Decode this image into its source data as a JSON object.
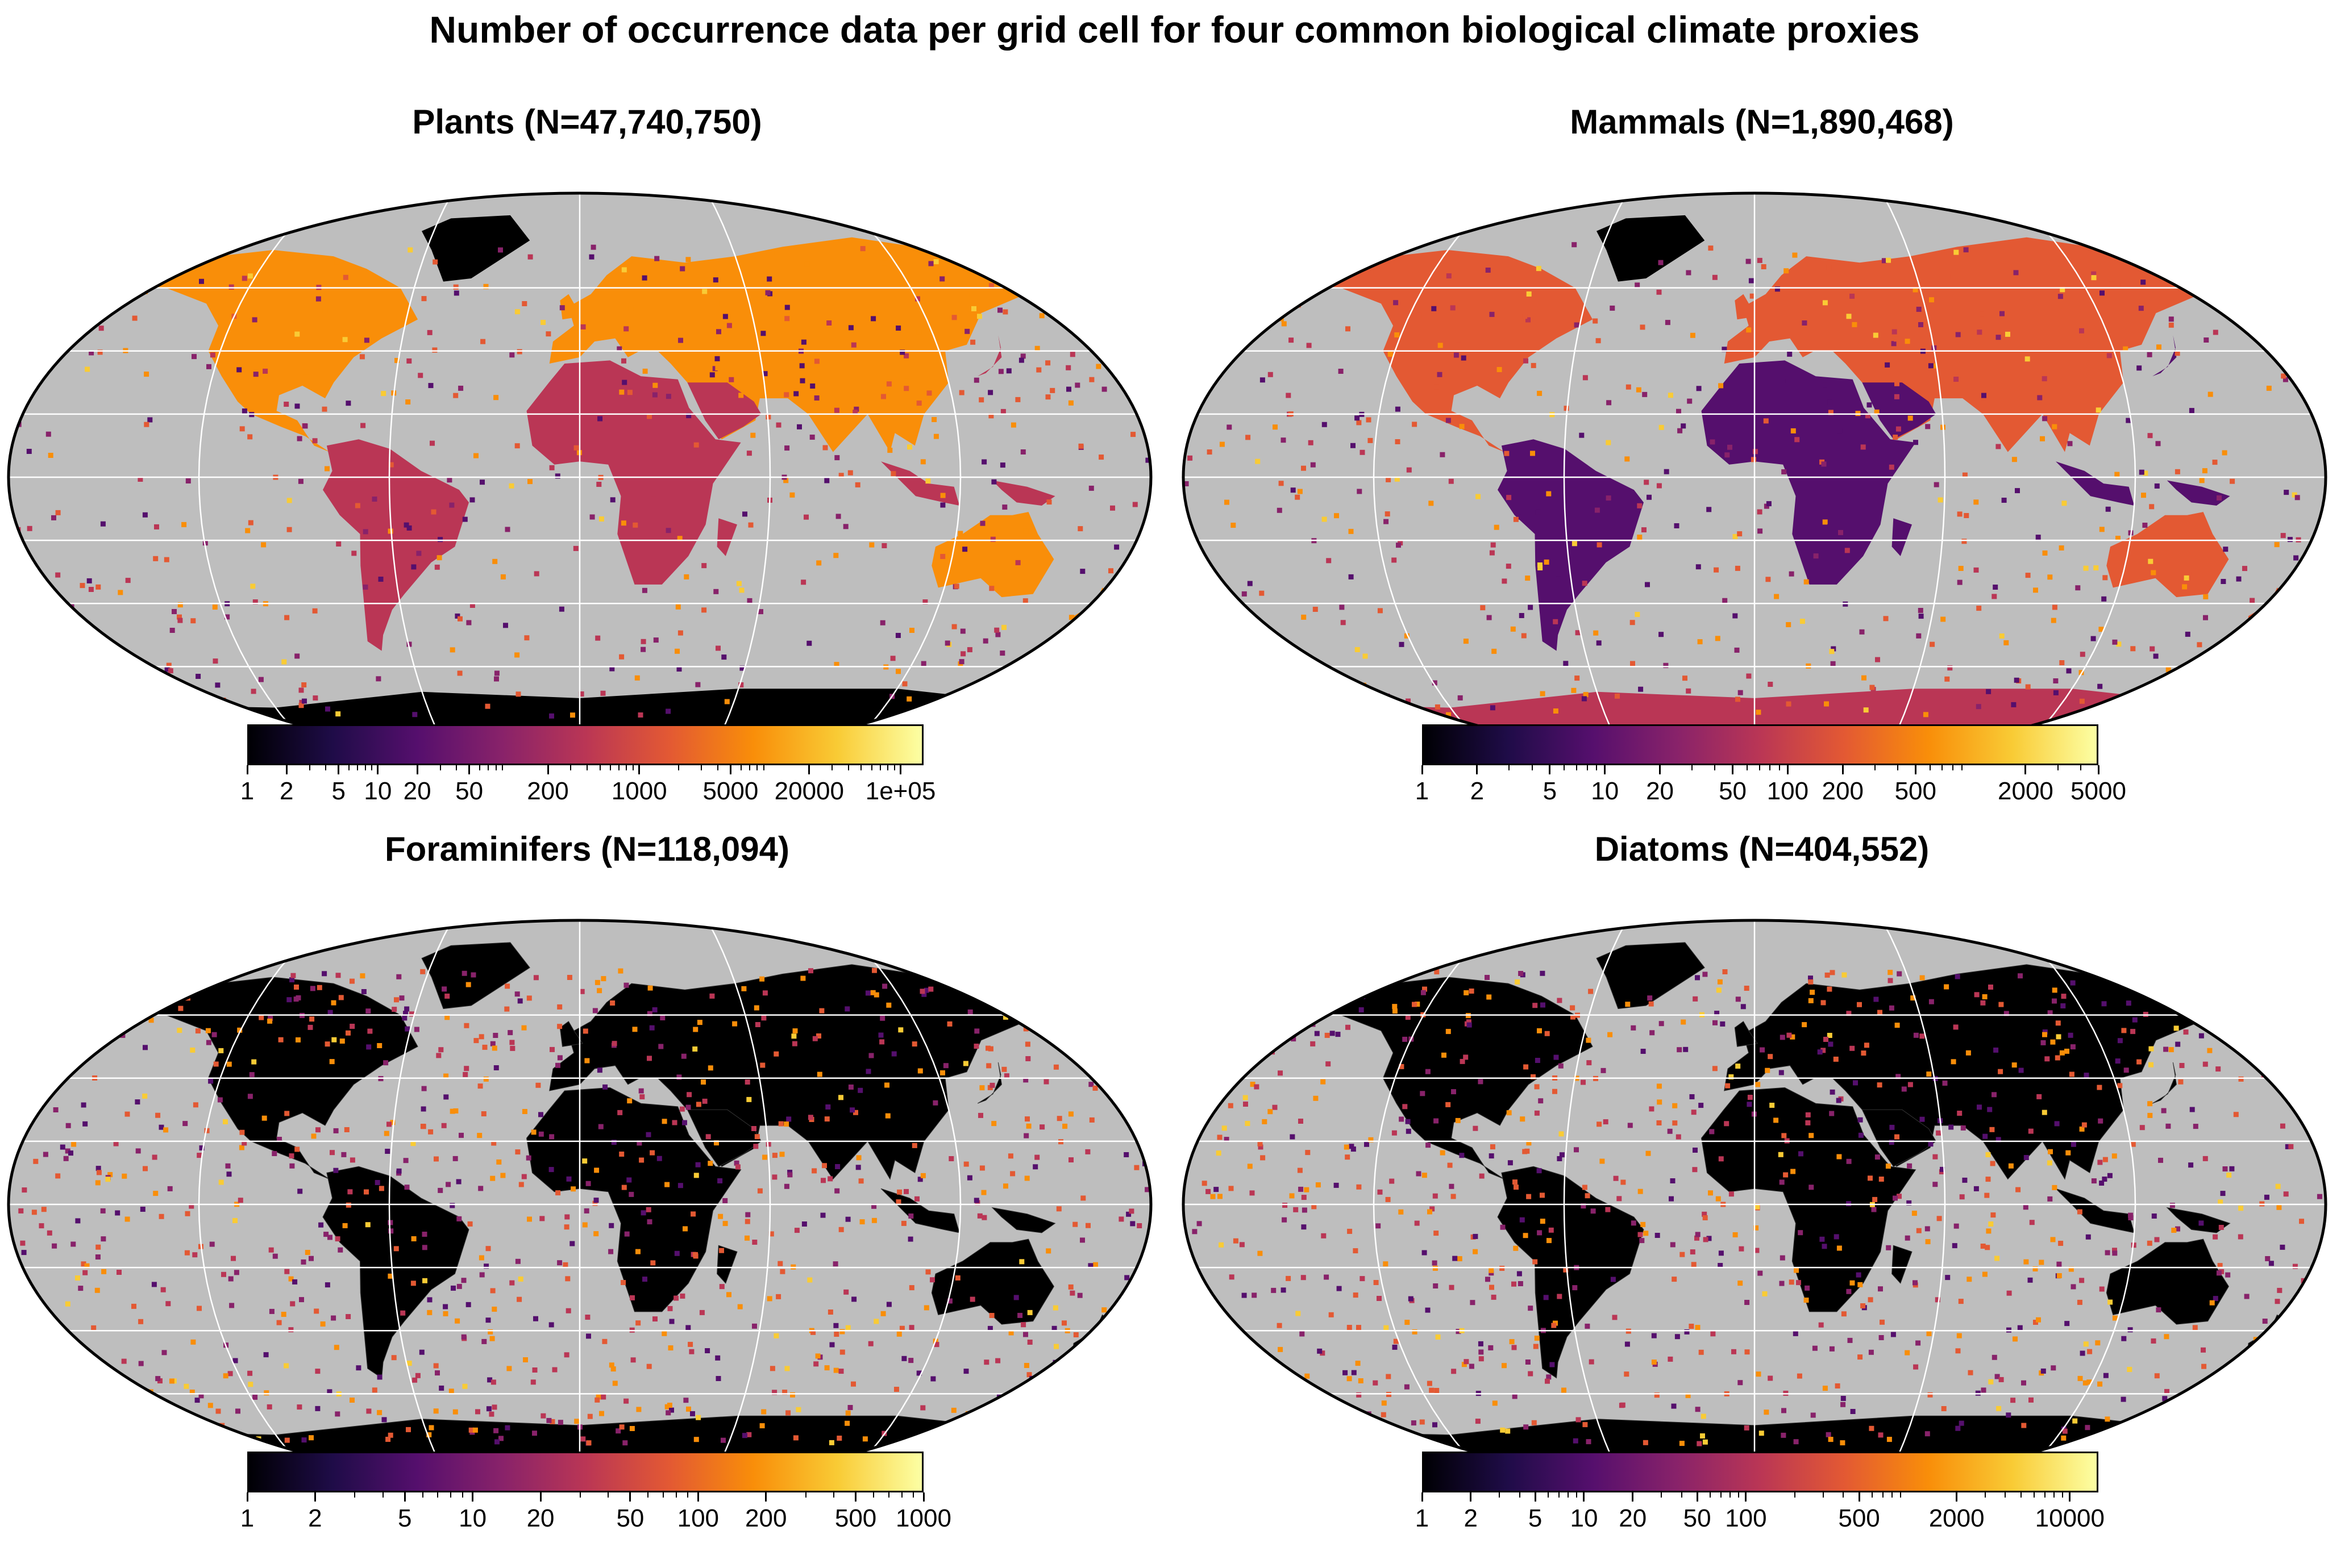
{
  "figure": {
    "title": "Number of occurrence data per grid cell for four common biological climate proxies"
  },
  "panels": [
    {
      "id": "plants",
      "title": "Plants (N=47,740,750)",
      "land_style": "heat",
      "colorbar": {
        "min": 1,
        "max": 150000,
        "scale": "log",
        "ticks": [
          1,
          2,
          5,
          10,
          20,
          50,
          200,
          1000,
          5000,
          20000,
          100000
        ],
        "tick_labels": [
          "1",
          "2",
          "5",
          "10",
          "20",
          "50",
          "200",
          "1000",
          "5000",
          "20000",
          "1e+05"
        ]
      }
    },
    {
      "id": "mammals",
      "title": "Mammals (N=1,890,468)",
      "land_style": "heat",
      "colorbar": {
        "min": 1,
        "max": 5000,
        "scale": "log",
        "ticks": [
          1,
          2,
          5,
          10,
          20,
          50,
          100,
          200,
          500,
          2000,
          5000
        ],
        "tick_labels": [
          "1",
          "2",
          "5",
          "10",
          "20",
          "50",
          "100",
          "200",
          "500",
          "2000",
          "5000"
        ]
      }
    },
    {
      "id": "foraminifers",
      "title": "Foraminifers (N=118,094)",
      "land_style": "black",
      "colorbar": {
        "min": 1,
        "max": 1000,
        "scale": "log",
        "ticks": [
          1,
          2,
          5,
          10,
          20,
          50,
          100,
          200,
          500,
          1000
        ],
        "tick_labels": [
          "1",
          "2",
          "5",
          "10",
          "20",
          "50",
          "100",
          "200",
          "500",
          "1000"
        ]
      }
    },
    {
      "id": "diatoms",
      "title": "Diatoms (N=404,552)",
      "land_style": "black",
      "colorbar": {
        "min": 1,
        "max": 15000,
        "scale": "log",
        "ticks": [
          1,
          2,
          5,
          10,
          20,
          50,
          100,
          500,
          2000,
          10000
        ],
        "tick_labels": [
          "1",
          "2",
          "5",
          "10",
          "20",
          "50",
          "100",
          "500",
          "2000",
          "10000"
        ]
      }
    }
  ],
  "colors": {
    "ocean": "#bebebe",
    "land_black": "#000000",
    "graticule": "#ffffff",
    "colormap": [
      "#000004",
      "#1f0c48",
      "#550f6d",
      "#88226a",
      "#ba3655",
      "#e35933",
      "#f98e09",
      "#f9cb35",
      "#fcffa4"
    ]
  }
}
